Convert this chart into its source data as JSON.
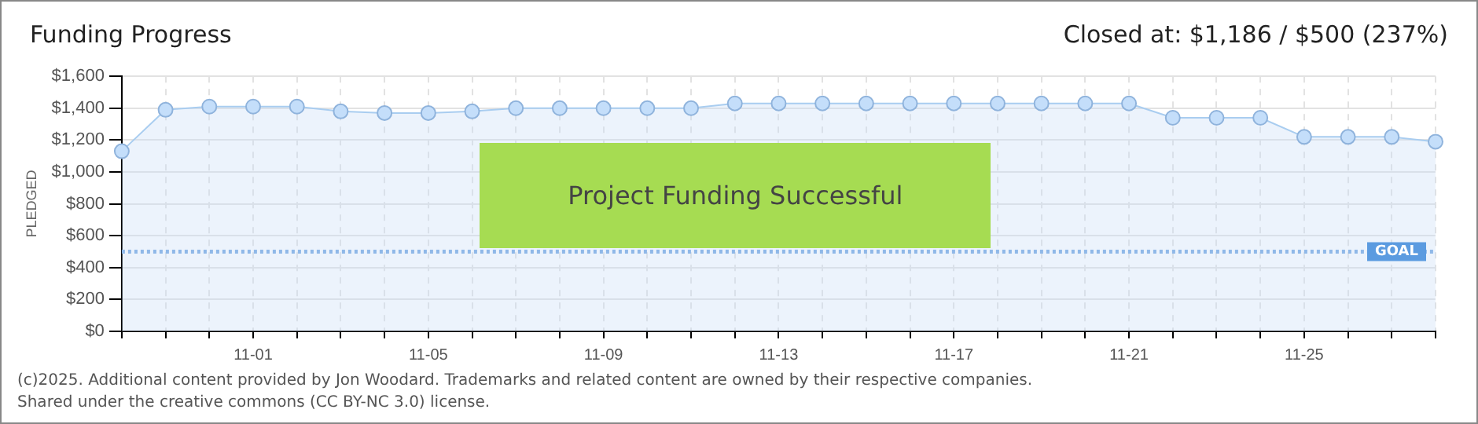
{
  "chart_data": {
    "type": "area",
    "title": "Funding Progress",
    "categories": [
      null,
      null,
      null,
      "11-01",
      null,
      null,
      null,
      "11-05",
      null,
      null,
      null,
      "11-09",
      null,
      null,
      null,
      "11-13",
      null,
      null,
      null,
      "11-17",
      null,
      null,
      null,
      "11-21",
      null,
      null,
      null,
      "11-25",
      null,
      null,
      null
    ],
    "values": [
      1130,
      1390,
      1410,
      1410,
      1410,
      1380,
      1370,
      1370,
      1380,
      1400,
      1400,
      1400,
      1400,
      1400,
      1430,
      1430,
      1430,
      1430,
      1430,
      1430,
      1430,
      1430,
      1430,
      1430,
      1340,
      1340,
      1340,
      1220,
      1220,
      1220,
      1190
    ],
    "color": "#a9cdf0",
    "marker": "circle",
    "line_style": "solid",
    "grid": true,
    "legend": false,
    "ylabel": "PLEDGED",
    "ylim": [
      0,
      1600
    ],
    "yticks": [
      {
        "value": 0,
        "label": "$0"
      },
      {
        "value": 200,
        "label": "$200"
      },
      {
        "value": 400,
        "label": "$400"
      },
      {
        "value": 600,
        "label": "$600"
      },
      {
        "value": 800,
        "label": "$800"
      },
      {
        "value": 1000,
        "label": "$1,000"
      },
      {
        "value": 1200,
        "label": "$1,200"
      },
      {
        "value": 1400,
        "label": "$1,400"
      },
      {
        "value": 1600,
        "label": "$1,600"
      }
    ],
    "ref_lines": [
      {
        "axis": "y",
        "value": 500,
        "label": "GOAL",
        "color": "#8fb8e8",
        "line_style": "dotted"
      }
    ],
    "annotations": [
      "Project Funding Successful",
      "Closed at: $1,186 / $500 (237%)",
      "(c)2025. Additional content provided by Jon Woodard. Trademarks and related content are owned by their respective companies.",
      "Shared under the creative commons (CC BY-NC 3.0) license."
    ]
  }
}
